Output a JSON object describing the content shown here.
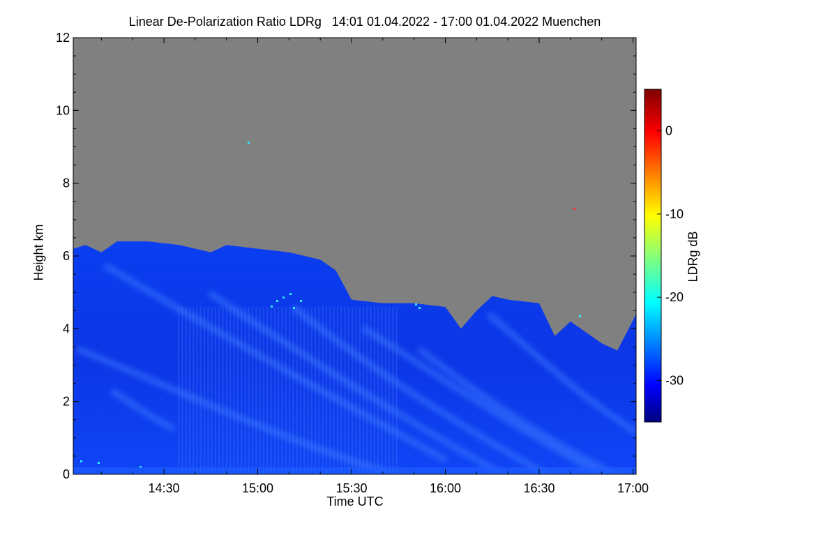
{
  "chart_data": {
    "type": "heatmap",
    "title": "Linear De-Polarization Ratio LDRg   14:01 01.04.2022 - 17:00 01.04.2022 Muenchen",
    "xlabel": "Time UTC",
    "ylabel": "Height km",
    "xlim": [
      "14:01",
      "17:01"
    ],
    "ylim": [
      0,
      12
    ],
    "x_ticks": [
      "14:30",
      "15:00",
      "15:30",
      "16:00",
      "16:30",
      "17:00"
    ],
    "y_ticks": [
      0,
      2,
      4,
      6,
      8,
      10,
      12
    ],
    "no_data_color": "#808080",
    "colorbar": {
      "label": "LDRg dB",
      "range": [
        -35,
        5
      ],
      "ticks": [
        0,
        -10,
        -20,
        -30
      ],
      "colormap": "jet"
    },
    "signal_top_km": [
      {
        "time": "14:01",
        "height": 6.2
      },
      {
        "time": "14:05",
        "height": 6.3
      },
      {
        "time": "14:10",
        "height": 6.1
      },
      {
        "time": "14:15",
        "height": 6.4
      },
      {
        "time": "14:25",
        "height": 6.4
      },
      {
        "time": "14:35",
        "height": 6.3
      },
      {
        "time": "14:45",
        "height": 6.1
      },
      {
        "time": "14:50",
        "height": 6.3
      },
      {
        "time": "15:00",
        "height": 6.2
      },
      {
        "time": "15:10",
        "height": 6.1
      },
      {
        "time": "15:20",
        "height": 5.9
      },
      {
        "time": "15:25",
        "height": 5.6
      },
      {
        "time": "15:30",
        "height": 4.8
      },
      {
        "time": "15:40",
        "height": 4.7
      },
      {
        "time": "15:50",
        "height": 4.7
      },
      {
        "time": "16:00",
        "height": 4.6
      },
      {
        "time": "16:05",
        "height": 4.0
      },
      {
        "time": "16:10",
        "height": 4.5
      },
      {
        "time": "16:15",
        "height": 4.9
      },
      {
        "time": "16:20",
        "height": 4.8
      },
      {
        "time": "16:30",
        "height": 4.7
      },
      {
        "time": "16:35",
        "height": 3.8
      },
      {
        "time": "16:40",
        "height": 4.2
      },
      {
        "time": "16:50",
        "height": 3.6
      },
      {
        "time": "16:55",
        "height": 3.4
      },
      {
        "time": "17:01",
        "height": 4.4
      }
    ],
    "background_ldr_db": -30
  }
}
